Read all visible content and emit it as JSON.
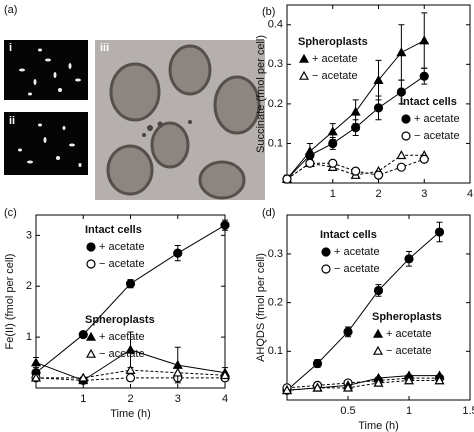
{
  "panel_a": {
    "label": "(a)",
    "images": [
      "i",
      "ii",
      "iii"
    ]
  },
  "chart_data": [
    {
      "type": "line",
      "panel_label": "(b)",
      "ylabel": "Succinate (fmol per cell)",
      "x": [
        0,
        0.5,
        1,
        1.5,
        2,
        2.5,
        3
      ],
      "xlim": [
        0,
        4
      ],
      "ylim": [
        0,
        0.45
      ],
      "xticks": [
        1,
        2,
        3,
        4
      ],
      "yticks": [
        0.1,
        0.2,
        0.3,
        0.4
      ],
      "legend_groups": [
        "Spheroplasts",
        "Intact cells"
      ],
      "series": [
        {
          "name": "+ acetate",
          "marker": "triangle",
          "filled": true,
          "dashed": false,
          "color": "#000000",
          "values": [
            0.01,
            0.08,
            0.13,
            0.18,
            0.26,
            0.33,
            0.36
          ],
          "errors": [
            0.01,
            0.02,
            0.02,
            0.03,
            0.05,
            0.07,
            0.07
          ]
        },
        {
          "name": "− acetate",
          "marker": "triangle",
          "filled": false,
          "dashed": true,
          "color": "#000000",
          "values": [
            0.01,
            0.05,
            0.04,
            0.02,
            0.03,
            0.07,
            0.07
          ]
        },
        {
          "name": "+ acetate",
          "marker": "circle",
          "filled": true,
          "dashed": false,
          "color": "#000000",
          "values": [
            0.01,
            0.07,
            0.1,
            0.14,
            0.19,
            0.23,
            0.27
          ],
          "errors": [
            0.005,
            0.01,
            0.015,
            0.02,
            0.03,
            0.03,
            0.02
          ]
        },
        {
          "name": "− acetate",
          "marker": "circle",
          "filled": false,
          "dashed": true,
          "color": "#000000",
          "values": [
            0.01,
            0.05,
            0.05,
            0.03,
            0.02,
            0.04,
            0.06
          ]
        }
      ]
    },
    {
      "type": "line",
      "panel_label": "(c)",
      "ylabel": "Fe(II) (fmol per cell)",
      "xlabel": "Time (h)",
      "x": [
        0,
        1,
        2,
        3,
        4
      ],
      "xlim": [
        0,
        4
      ],
      "ylim": [
        0,
        3.4
      ],
      "xticks": [
        1,
        2,
        3,
        4
      ],
      "yticks": [
        1,
        2,
        3
      ],
      "legend_groups": [
        "Intact cells",
        "Spheroplasts"
      ],
      "series": [
        {
          "name": "+ acetate",
          "marker": "circle",
          "filled": true,
          "dashed": false,
          "color": "#000000",
          "values": [
            0.3,
            1.05,
            2.05,
            2.65,
            3.2
          ],
          "errors": [
            0.05,
            0.05,
            0.08,
            0.15,
            0.1
          ]
        },
        {
          "name": "− acetate",
          "marker": "circle",
          "filled": false,
          "dashed": true,
          "color": "#000000",
          "values": [
            0.2,
            0.15,
            0.2,
            0.2,
            0.2
          ]
        },
        {
          "name": "+ acetate",
          "marker": "triangle",
          "filled": true,
          "dashed": false,
          "color": "#000000",
          "values": [
            0.5,
            0.15,
            0.75,
            0.45,
            0.3
          ],
          "errors": [
            0.1,
            0.05,
            0.35,
            0.35,
            0.1
          ]
        },
        {
          "name": "− acetate",
          "marker": "triangle",
          "filled": false,
          "dashed": true,
          "color": "#000000",
          "values": [
            0.2,
            0.2,
            0.35,
            0.3,
            0.25
          ]
        }
      ]
    },
    {
      "type": "line",
      "panel_label": "(d)",
      "ylabel": "AHQDS (fmol per cell)",
      "xlabel": "Time (h)",
      "x": [
        0,
        0.25,
        0.5,
        0.75,
        1,
        1.25
      ],
      "xlim": [
        0,
        1.5
      ],
      "ylim": [
        0,
        0.38
      ],
      "xticks": [
        0.5,
        1,
        1.5
      ],
      "yticks": [
        0.1,
        0.2,
        0.3
      ],
      "legend_groups": [
        "Intact cells",
        "Spheroplasts"
      ],
      "series": [
        {
          "name": "+ acetate",
          "marker": "circle",
          "filled": true,
          "dashed": false,
          "color": "#000000",
          "values": [
            0.02,
            0.075,
            0.14,
            0.225,
            0.29,
            0.345
          ],
          "errors": [
            0.005,
            0.008,
            0.01,
            0.012,
            0.015,
            0.02
          ]
        },
        {
          "name": "− acetate",
          "marker": "circle",
          "filled": false,
          "dashed": true,
          "color": "#000000",
          "values": [
            0.025,
            0.03,
            0.035,
            0.04,
            0.045,
            0.045
          ]
        },
        {
          "name": "+ acetate",
          "marker": "triangle",
          "filled": true,
          "dashed": false,
          "color": "#000000",
          "values": [
            0.02,
            0.025,
            0.03,
            0.045,
            0.05,
            0.05
          ]
        },
        {
          "name": "− acetate",
          "marker": "triangle",
          "filled": false,
          "dashed": true,
          "color": "#000000",
          "values": [
            0.02,
            0.025,
            0.025,
            0.035,
            0.04,
            0.04
          ]
        }
      ]
    }
  ]
}
